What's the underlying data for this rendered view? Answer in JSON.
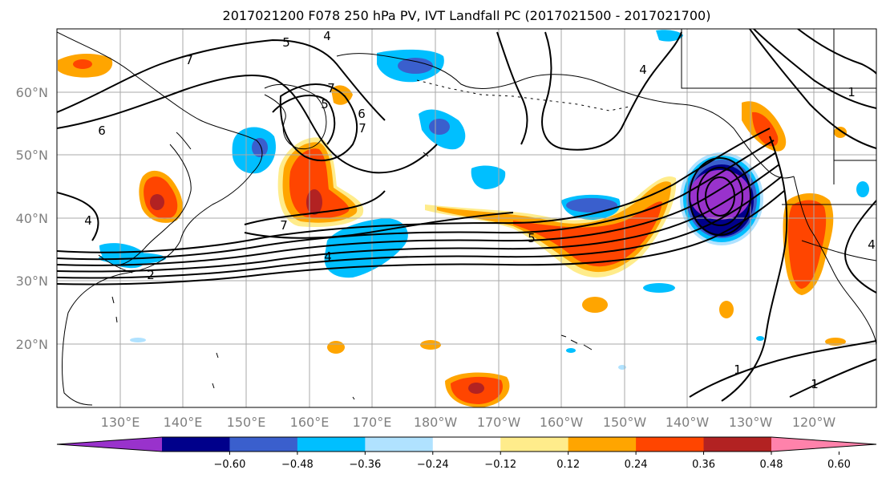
{
  "title": "2017021200 F078 250 hPa PV, IVT Landfall PC (2017021500 - 2017021700)",
  "lat_labels": [
    "60°N",
    "50°N",
    "40°N",
    "30°N",
    "20°N"
  ],
  "lon_labels": [
    "130°E",
    "140°E",
    "150°E",
    "160°E",
    "170°E",
    "180°W",
    "170°W",
    "160°W",
    "150°W",
    "140°W",
    "130°W",
    "120°W"
  ],
  "colorbar": {
    "ticks": [
      "−0.60",
      "−0.48",
      "−0.36",
      "−0.24",
      "−0.12",
      "0.12",
      "0.24",
      "0.36",
      "0.48",
      "0.60"
    ],
    "colors": [
      "#9932cc",
      "#00008b",
      "#3a5fcd",
      "#00bfff",
      "#b0e2ff",
      "#ffffff",
      "#ffec8b",
      "#ffa500",
      "#ff4500",
      "#b22222",
      "#ff82ab"
    ]
  },
  "contour_labels": [
    "7",
    "5",
    "4",
    "7",
    "6",
    "7",
    "6",
    "5",
    "7",
    "4",
    "5",
    "4",
    "4",
    "2",
    "1",
    "1",
    "1",
    "4"
  ],
  "colors": {
    "grid": "#a9a9a9",
    "coast": "#000000",
    "contour": "#000000",
    "tick_text": "#7f7f7f"
  }
}
